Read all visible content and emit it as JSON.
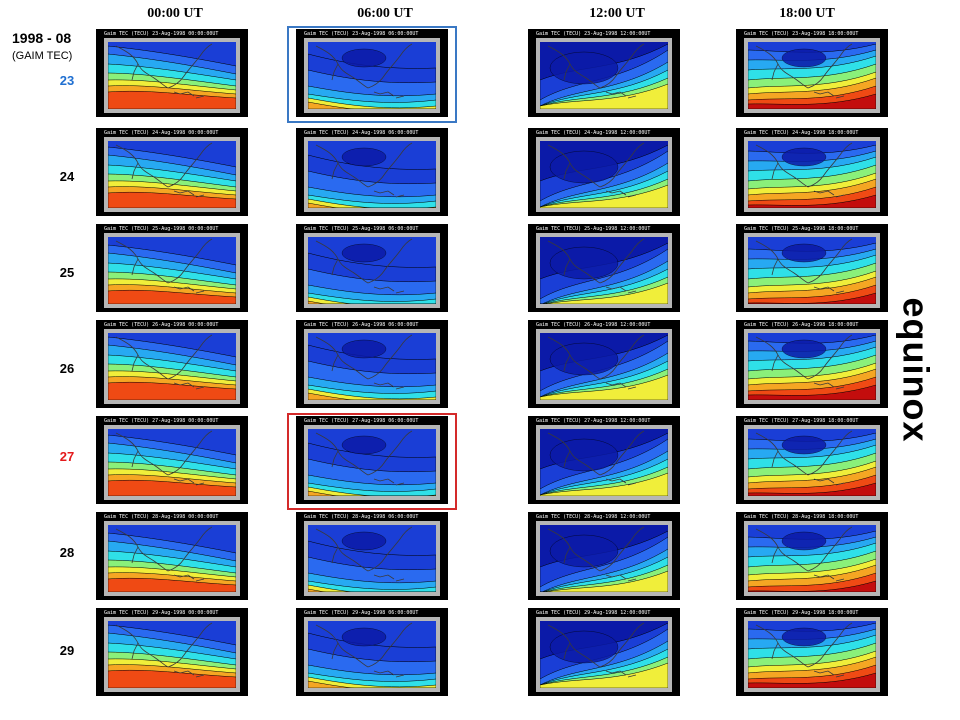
{
  "title": "1998 - 08",
  "subtitle": "(GAIM TEC)",
  "side_label": "equinox",
  "columns": [
    "00:00 UT",
    "06:00 UT",
    "12:00 UT",
    "18:00 UT"
  ],
  "days": [
    {
      "label": "23",
      "color": "#1f6fd1",
      "headers": [
        "Gaim TEC (TECU) 23-Aug-1998 00:00:00UT",
        "Gaim TEC (TECU) 23-Aug-1998 06:00:00UT",
        "Gaim TEC (TECU) 23-Aug-1998 12:00:00UT",
        "Gaim TEC (TECU) 23-Aug-1998 18:00:00UT"
      ]
    },
    {
      "label": "24",
      "color": "#000000",
      "headers": [
        "Gaim TEC (TECU) 24-Aug-1998 00:00:00UT",
        "Gaim TEC (TECU) 24-Aug-1998 06:00:00UT",
        "Gaim TEC (TECU) 24-Aug-1998 12:00:00UT",
        "Gaim TEC (TECU) 24-Aug-1998 18:00:00UT"
      ]
    },
    {
      "label": "25",
      "color": "#000000",
      "headers": [
        "Gaim TEC (TECU) 25-Aug-1998 00:00:00UT",
        "Gaim TEC (TECU) 25-Aug-1998 06:00:00UT",
        "Gaim TEC (TECU) 25-Aug-1998 12:00:00UT",
        "Gaim TEC (TECU) 25-Aug-1998 18:00:00UT"
      ]
    },
    {
      "label": "26",
      "color": "#000000",
      "headers": [
        "Gaim TEC (TECU) 26-Aug-1998 00:00:00UT",
        "Gaim TEC (TECU) 26-Aug-1998 06:00:00UT",
        "Gaim TEC (TECU) 26-Aug-1998 12:00:00UT",
        "Gaim TEC (TECU) 26-Aug-1998 18:00:00UT"
      ]
    },
    {
      "label": "27",
      "color": "#e41a1c",
      "headers": [
        "Gaim TEC (TECU) 27-Aug-1998 00:00:00UT",
        "Gaim TEC (TECU) 27-Aug-1998 06:00:00UT",
        "Gaim TEC (TECU) 27-Aug-1998 12:00:00UT",
        "Gaim TEC (TECU) 27-Aug-1998 18:00:00UT"
      ]
    },
    {
      "label": "28",
      "color": "#000000",
      "headers": [
        "Gaim TEC (TECU) 28-Aug-1998 00:00:00UT",
        "Gaim TEC (TECU) 28-Aug-1998 06:00:00UT",
        "Gaim TEC (TECU) 28-Aug-1998 12:00:00UT",
        "Gaim TEC (TECU) 28-Aug-1998 18:00:00UT"
      ]
    },
    {
      "label": "29",
      "color": "#000000",
      "headers": [
        "Gaim TEC (TECU) 29-Aug-1998 00:00:00UT",
        "Gaim TEC (TECU) 29-Aug-1998 06:00:00UT",
        "Gaim TEC (TECU) 29-Aug-1998 12:00:00UT",
        "Gaim TEC (TECU) 29-Aug-1998 18:00:00UT"
      ]
    }
  ],
  "highlights": [
    {
      "day": "23",
      "column": "06:00 UT",
      "color": "#3a78c4"
    },
    {
      "day": "27",
      "column": "06:00 UT",
      "color": "#d42a2a"
    }
  ],
  "colors": {
    "tec_scale": [
      "#0b1aa8",
      "#1a3ed6",
      "#2a6af0",
      "#27a9f2",
      "#2fe0e8",
      "#8af07a",
      "#f0ee3a",
      "#f5a623",
      "#ef4a14",
      "#c30d0d"
    ],
    "panel_frame": "#b6b6b6",
    "panel_background": "#000000"
  }
}
